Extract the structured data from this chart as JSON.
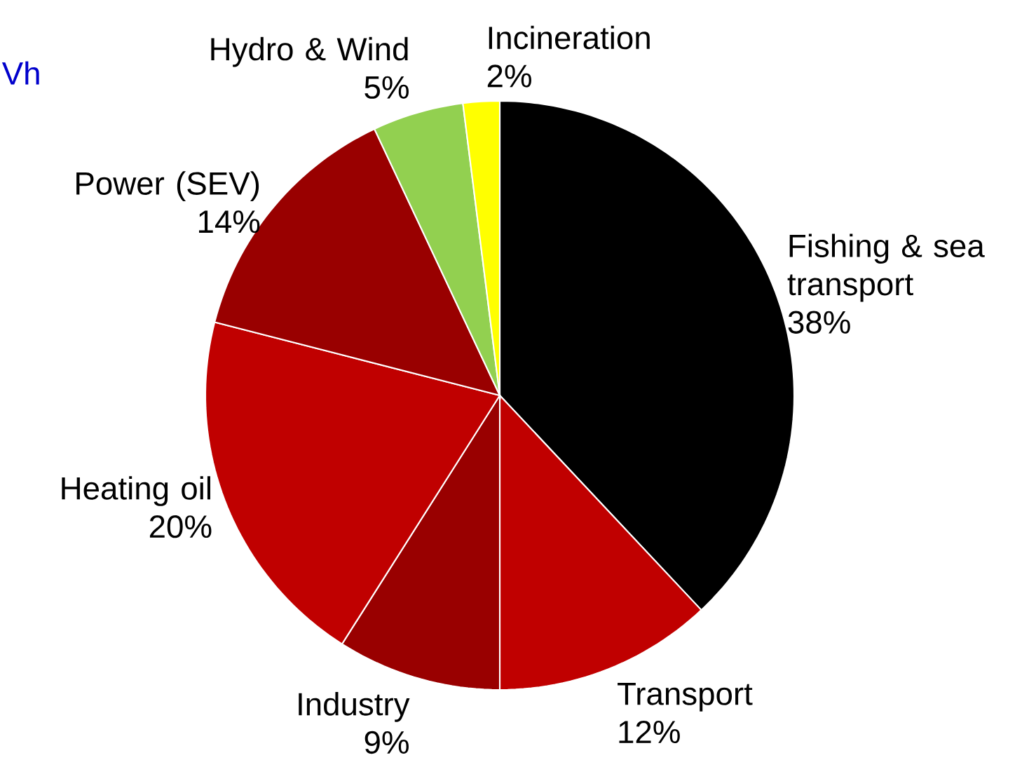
{
  "chart_data": {
    "type": "pie",
    "categories": [
      "Fishing & sea transport",
      "Transport",
      "Industry",
      "Heating oil",
      "Power (SEV)",
      "Hydro & Wind",
      "Incineration"
    ],
    "values": [
      38,
      12,
      9,
      20,
      14,
      5,
      2
    ],
    "value_labels": [
      "38%",
      "12%",
      "9%",
      "20%",
      "14%",
      "5%",
      "2%"
    ],
    "colors": [
      "#000000",
      "#c00000",
      "#990000",
      "#c00000",
      "#990000",
      "#92d050",
      "#ffff00"
    ],
    "annotations": [
      "Vh"
    ]
  }
}
